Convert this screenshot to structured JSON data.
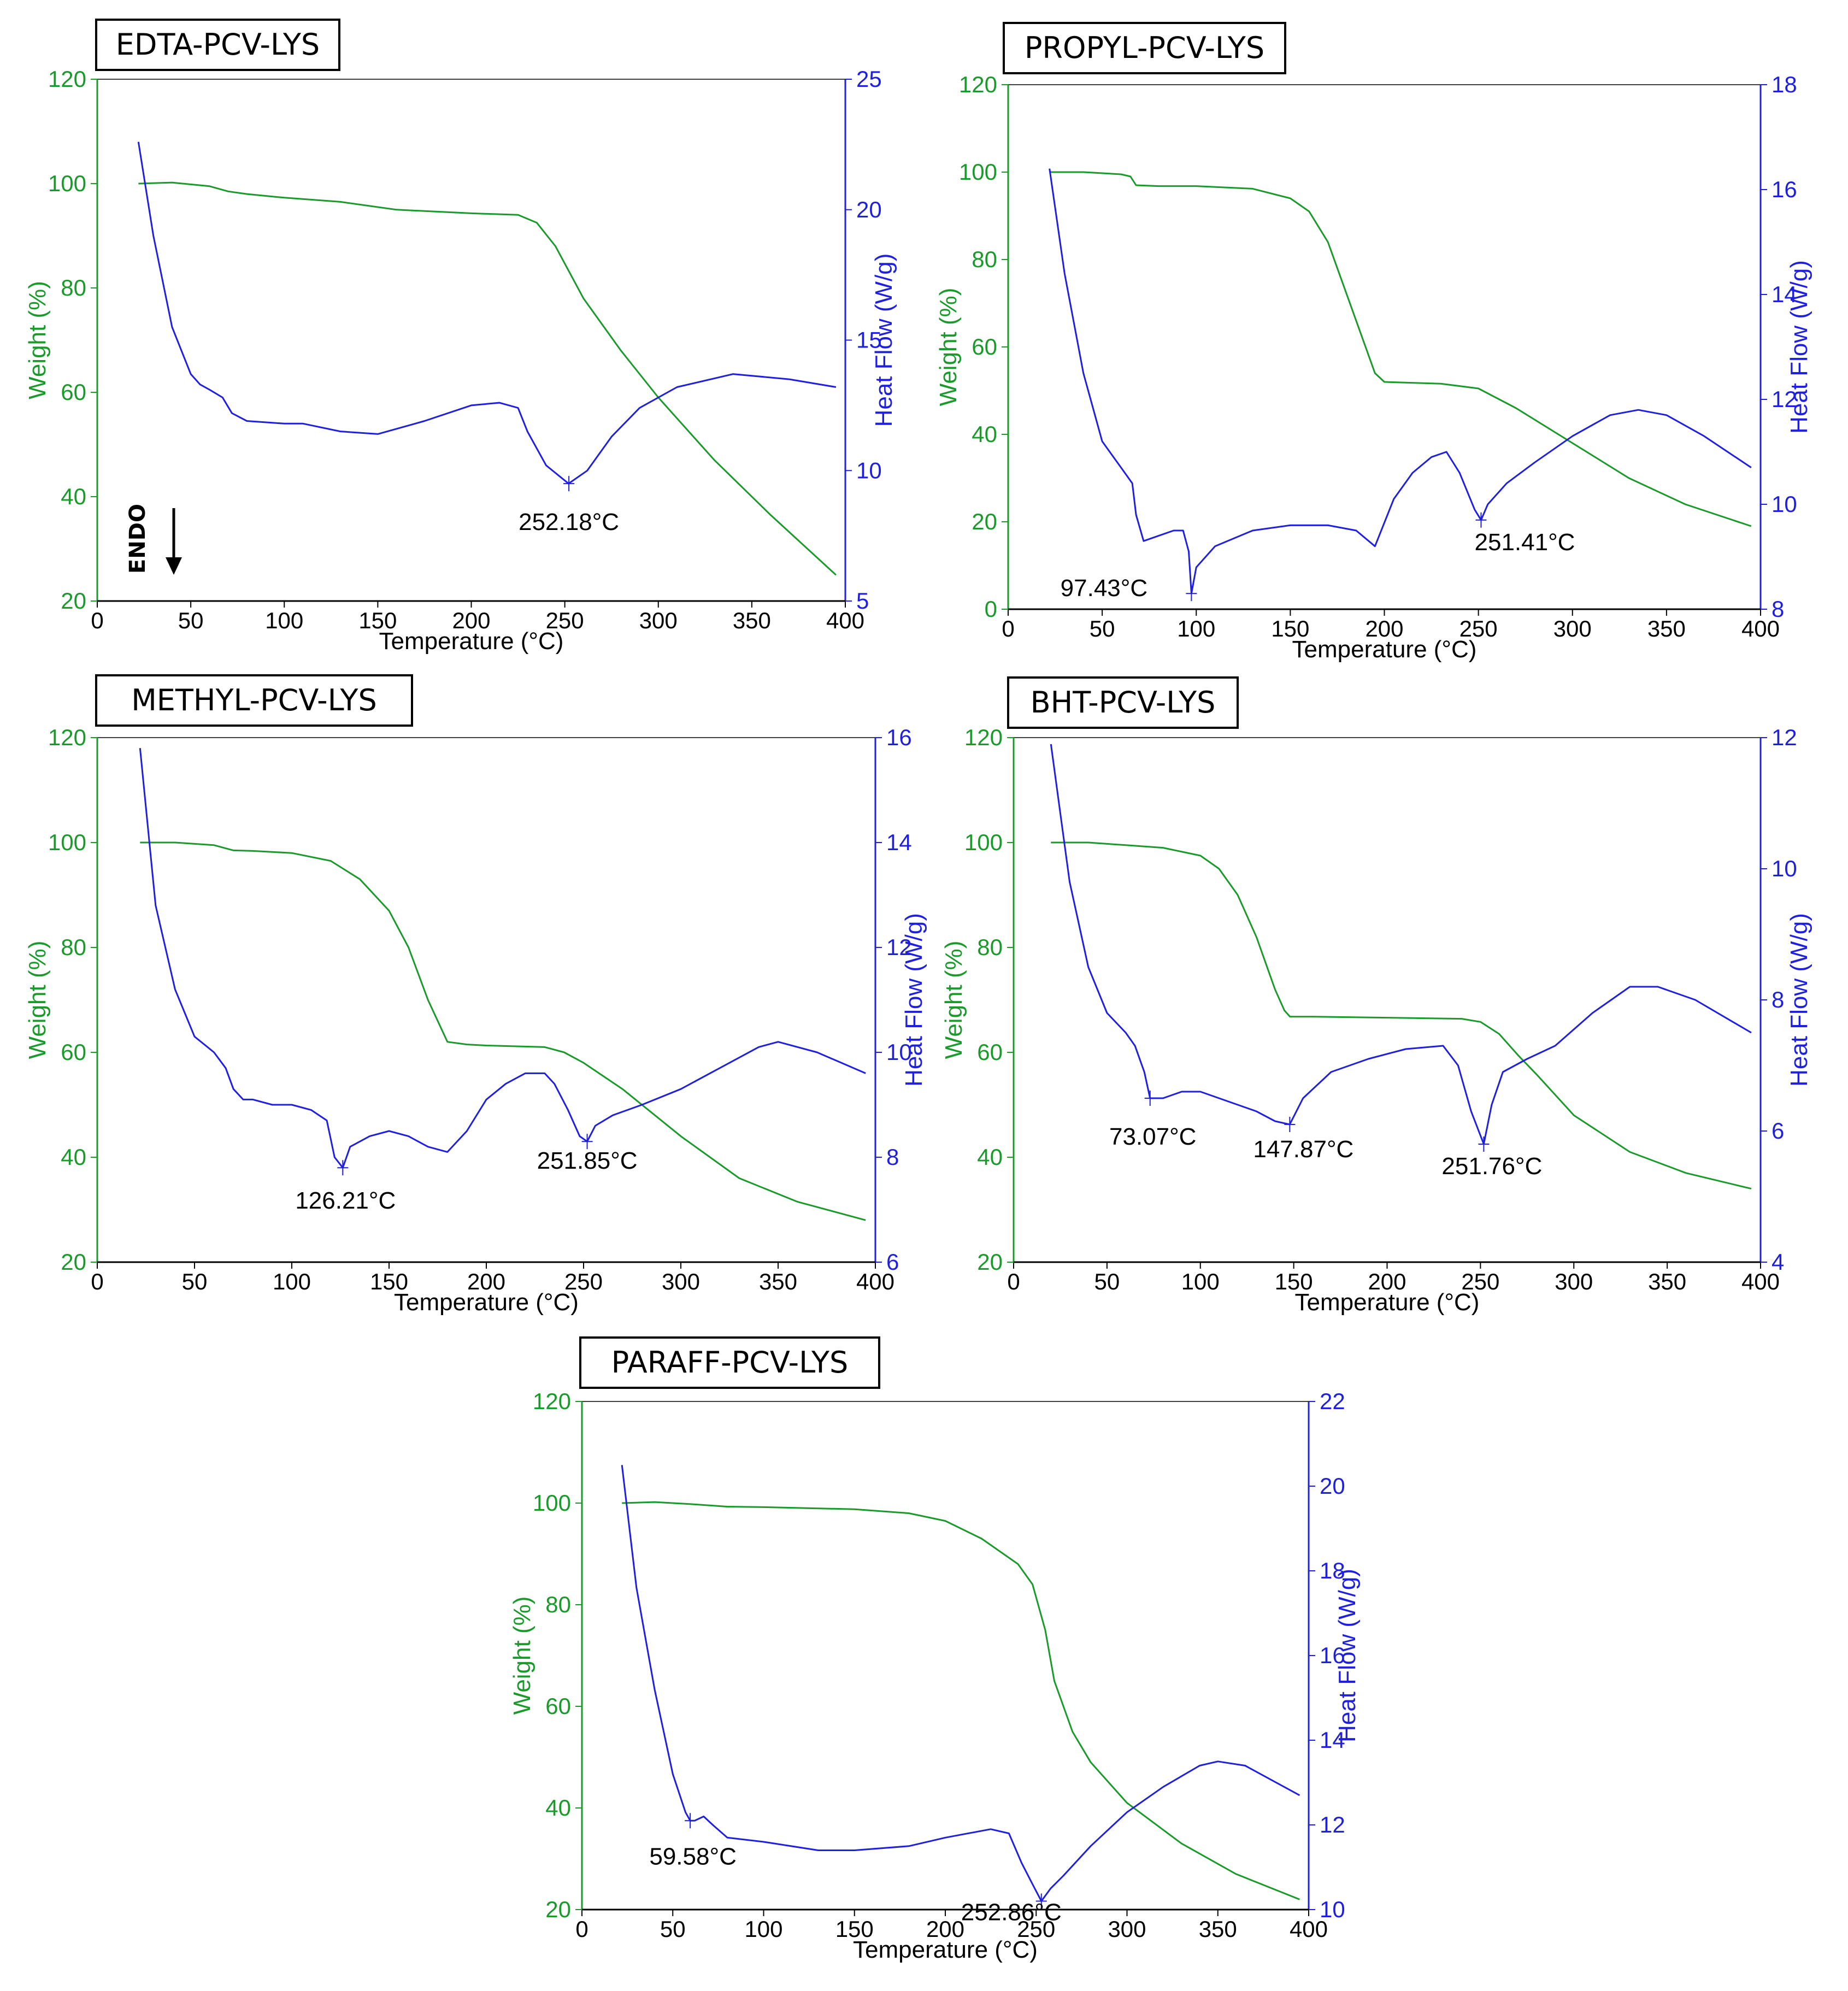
{
  "colors": {
    "weight": "#1a9a2a",
    "heat": "#1f1fe0",
    "frame": "#000000",
    "annotation": "#000000"
  },
  "chart_data": [
    {
      "type": "line",
      "title": "EDTA-PCV-LYS",
      "xlabel": "Temperature (°C)",
      "ylabel_left": "Weight (%)",
      "ylabel_right": "Heat Flow (W/g)",
      "xlim": [
        0,
        400
      ],
      "xticks": [
        "0",
        "50",
        "100",
        "150",
        "200",
        "250",
        "300",
        "350",
        "400"
      ],
      "ylim_left": [
        20,
        120
      ],
      "yticks_left": [
        "20",
        "40",
        "60",
        "80",
        "100",
        "120"
      ],
      "ylim_right": [
        5,
        25
      ],
      "yticks_right": [
        "5",
        "10",
        "15",
        "20",
        "25"
      ],
      "endo_label": "ENDO",
      "series": [
        {
          "name": "Weight (%)",
          "axis": "left",
          "x": [
            22,
            40,
            60,
            70,
            80,
            100,
            130,
            160,
            200,
            225,
            235,
            245,
            260,
            280,
            300,
            330,
            360,
            395
          ],
          "y": [
            100,
            100.2,
            99.5,
            98.5,
            98,
            97.3,
            96.5,
            95,
            94.3,
            94,
            92.5,
            88,
            78,
            68,
            59,
            47,
            36.5,
            25
          ]
        },
        {
          "name": "Heat Flow (W/g)",
          "axis": "right",
          "x": [
            22,
            30,
            40,
            50,
            55,
            60,
            67,
            72,
            80,
            100,
            110,
            130,
            150,
            175,
            200,
            215,
            225,
            230,
            240,
            252,
            262,
            275,
            290,
            310,
            340,
            370,
            395
          ],
          "y": [
            22.6,
            19,
            15.5,
            13.7,
            13.3,
            13.1,
            12.8,
            12.2,
            11.9,
            11.8,
            11.8,
            11.5,
            11.4,
            11.9,
            12.5,
            12.6,
            12.4,
            11.5,
            10.2,
            9.5,
            10,
            11.3,
            12.4,
            13.2,
            13.7,
            13.5,
            13.2
          ]
        }
      ],
      "annotations": [
        {
          "text": "252.18°C",
          "x": 252.18,
          "y": 9.5,
          "axis": "right"
        }
      ]
    },
    {
      "type": "line",
      "title": "PROPYL-PCV-LYS",
      "xlabel": "Temperature (°C)",
      "ylabel_left": "Weight (%)",
      "ylabel_right": "Heat Flow (W/g)",
      "xlim": [
        0,
        400
      ],
      "xticks": [
        "0",
        "50",
        "100",
        "150",
        "200",
        "250",
        "300",
        "350",
        "400"
      ],
      "ylim_left": [
        0,
        120
      ],
      "yticks_left": [
        "0",
        "20",
        "40",
        "60",
        "80",
        "100",
        "120"
      ],
      "ylim_right": [
        8,
        18
      ],
      "yticks_right": [
        "8",
        "10",
        "12",
        "14",
        "16",
        "18"
      ],
      "series": [
        {
          "name": "Weight (%)",
          "axis": "left",
          "x": [
            22,
            40,
            60,
            65,
            68,
            80,
            100,
            130,
            150,
            160,
            170,
            180,
            190,
            195,
            200,
            230,
            250,
            270,
            300,
            330,
            360,
            395
          ],
          "y": [
            100,
            100,
            99.5,
            99,
            97,
            96.8,
            96.8,
            96.2,
            94,
            91,
            84,
            72,
            60,
            54,
            52,
            51.6,
            50.5,
            46,
            38,
            30,
            24,
            19
          ]
        },
        {
          "name": "Heat Flow (W/g)",
          "axis": "right",
          "x": [
            22,
            30,
            40,
            50,
            60,
            66,
            68,
            72,
            80,
            88,
            93,
            96,
            97.43,
            100,
            110,
            130,
            150,
            170,
            185,
            195,
            205,
            215,
            225,
            233,
            240,
            248,
            251.41,
            255,
            265,
            280,
            300,
            320,
            335,
            350,
            370,
            395
          ],
          "y": [
            16.4,
            14.4,
            12.5,
            11.2,
            10.7,
            10.4,
            9.8,
            9.3,
            9.4,
            9.5,
            9.5,
            9.1,
            8.3,
            8.8,
            9.2,
            9.5,
            9.6,
            9.6,
            9.5,
            9.2,
            10.1,
            10.6,
            10.9,
            11,
            10.6,
            9.9,
            9.7,
            10,
            10.4,
            10.8,
            11.3,
            11.7,
            11.8,
            11.7,
            11.3,
            10.7
          ]
        }
      ],
      "annotations": [
        {
          "text": "97.43°C",
          "x": 97.43,
          "y": 8.3,
          "axis": "right"
        },
        {
          "text": "251.41°C",
          "x": 251.41,
          "y": 9.7,
          "axis": "right"
        }
      ]
    },
    {
      "type": "line",
      "title": "METHYL-PCV-LYS",
      "xlabel": "Temperature (°C)",
      "ylabel_left": "Weight (%)",
      "ylabel_right": "Heat Flow (W/g)",
      "xlim": [
        0,
        400
      ],
      "xticks": [
        "0",
        "50",
        "100",
        "150",
        "200",
        "250",
        "300",
        "350",
        "400"
      ],
      "ylim_left": [
        20,
        120
      ],
      "yticks_left": [
        "20",
        "40",
        "60",
        "80",
        "100",
        "120"
      ],
      "ylim_right": [
        6,
        16
      ],
      "yticks_right": [
        "6",
        "8",
        "10",
        "12",
        "14",
        "16"
      ],
      "series": [
        {
          "name": "Weight (%)",
          "axis": "left",
          "x": [
            22,
            40,
            60,
            70,
            80,
            100,
            120,
            135,
            150,
            160,
            170,
            180,
            190,
            200,
            230,
            240,
            250,
            270,
            300,
            330,
            360,
            395
          ],
          "y": [
            100,
            100,
            99.5,
            98.5,
            98.4,
            98,
            96.5,
            93,
            87,
            80,
            70,
            62,
            61.5,
            61.3,
            61,
            60,
            58,
            53,
            44,
            36,
            31.5,
            28
          ]
        },
        {
          "name": "Heat Flow (W/g)",
          "axis": "right",
          "x": [
            22,
            30,
            40,
            50,
            60,
            66,
            70,
            75,
            80,
            90,
            100,
            110,
            118,
            122,
            126.21,
            130,
            140,
            150,
            160,
            170,
            180,
            190,
            200,
            210,
            220,
            230,
            235,
            242,
            248,
            251.85,
            256,
            265,
            280,
            300,
            320,
            340,
            350,
            370,
            395
          ],
          "y": [
            15.8,
            12.8,
            11.2,
            10.3,
            10,
            9.7,
            9.3,
            9.1,
            9.1,
            9,
            9,
            8.9,
            8.7,
            8,
            7.8,
            8.2,
            8.4,
            8.5,
            8.4,
            8.2,
            8.1,
            8.5,
            9.1,
            9.4,
            9.6,
            9.6,
            9.4,
            8.9,
            8.4,
            8.3,
            8.6,
            8.8,
            9.0,
            9.3,
            9.7,
            10.1,
            10.2,
            10.0,
            9.6
          ]
        }
      ],
      "annotations": [
        {
          "text": "126.21°C",
          "x": 126.21,
          "y": 7.8,
          "axis": "right"
        },
        {
          "text": "251.85°C",
          "x": 251.85,
          "y": 8.3,
          "axis": "right"
        }
      ]
    },
    {
      "type": "line",
      "title": "BHT-PCV-LYS",
      "xlabel": "Temperature (°C)",
      "ylabel_left": "Weight (%)",
      "ylabel_right": "Heat Flow (W/g)",
      "xlim": [
        0,
        400
      ],
      "xticks": [
        "0",
        "50",
        "100",
        "150",
        "200",
        "250",
        "300",
        "350",
        "400"
      ],
      "ylim_left": [
        20,
        120
      ],
      "yticks_left": [
        "20",
        "40",
        "60",
        "80",
        "100",
        "120"
      ],
      "ylim_right": [
        4,
        12
      ],
      "yticks_right": [
        "4",
        "6",
        "8",
        "10",
        "12"
      ],
      "series": [
        {
          "name": "Weight (%)",
          "axis": "left",
          "x": [
            20,
            40,
            60,
            80,
            100,
            110,
            120,
            130,
            140,
            145,
            148,
            160,
            200,
            240,
            250,
            260,
            270,
            280,
            300,
            330,
            360,
            395
          ],
          "y": [
            100,
            100,
            99.5,
            99,
            97.5,
            95,
            90,
            82,
            72,
            68,
            66.8,
            66.8,
            66.6,
            66.4,
            65.8,
            63.5,
            59.5,
            55.8,
            48,
            41,
            37,
            34
          ]
        },
        {
          "name": "Heat Flow (W/g)",
          "axis": "right",
          "x": [
            20,
            30,
            40,
            50,
            60,
            65,
            70,
            73.07,
            80,
            90,
            100,
            110,
            120,
            130,
            140,
            147.87,
            155,
            170,
            190,
            210,
            230,
            238,
            245,
            251.76,
            256,
            262,
            275,
            290,
            310,
            330,
            345,
            365,
            395
          ],
          "y": [
            11.9,
            9.8,
            8.5,
            7.8,
            7.5,
            7.3,
            6.9,
            6.5,
            6.5,
            6.6,
            6.6,
            6.5,
            6.4,
            6.3,
            6.15,
            6.1,
            6.5,
            6.9,
            7.1,
            7.25,
            7.3,
            7,
            6.3,
            5.8,
            6.4,
            6.9,
            7.1,
            7.3,
            7.8,
            8.2,
            8.2,
            8.0,
            7.5
          ]
        }
      ],
      "annotations": [
        {
          "text": "73.07°C",
          "x": 73.07,
          "y": 6.5,
          "axis": "right"
        },
        {
          "text": "147.87°C",
          "x": 147.87,
          "y": 6.1,
          "axis": "right"
        },
        {
          "text": "251.76°C",
          "x": 251.76,
          "y": 5.8,
          "axis": "right"
        }
      ]
    },
    {
      "type": "line",
      "title": "PARAFF-PCV-LYS",
      "xlabel": "Temperature (°C)",
      "ylabel_left": "Weight (%)",
      "ylabel_right": "Heat Flow (W/g)",
      "xlim": [
        0,
        400
      ],
      "xticks": [
        "0",
        "50",
        "100",
        "150",
        "200",
        "250",
        "300",
        "350",
        "400"
      ],
      "ylim_left": [
        20,
        120
      ],
      "yticks_left": [
        "20",
        "40",
        "60",
        "80",
        "100",
        "120"
      ],
      "ylim_right": [
        10,
        22
      ],
      "yticks_right": [
        "10",
        "12",
        "14",
        "16",
        "18",
        "20",
        "22"
      ],
      "series": [
        {
          "name": "Weight (%)",
          "axis": "left",
          "x": [
            22,
            40,
            60,
            80,
            100,
            150,
            180,
            200,
            220,
            240,
            248,
            255,
            260,
            270,
            280,
            300,
            330,
            360,
            395
          ],
          "y": [
            100,
            100.2,
            99.8,
            99.3,
            99.2,
            98.8,
            98,
            96.5,
            93,
            88,
            84,
            75,
            65,
            55,
            49,
            41,
            33,
            27,
            22
          ]
        },
        {
          "name": "Heat Flow (W/g)",
          "axis": "right",
          "x": [
            22,
            30,
            40,
            50,
            57,
            59.58,
            62,
            67,
            72,
            80,
            100,
            130,
            150,
            180,
            200,
            225,
            235,
            242,
            248,
            252.86,
            258,
            265,
            280,
            300,
            320,
            340,
            350,
            365,
            395
          ],
          "y": [
            20.5,
            17.6,
            15.2,
            13.2,
            12.3,
            12.1,
            12.1,
            12.2,
            12.0,
            11.7,
            11.6,
            11.4,
            11.4,
            11.5,
            11.7,
            11.9,
            11.8,
            11.1,
            10.6,
            10.2,
            10.5,
            10.8,
            11.5,
            12.3,
            12.9,
            13.4,
            13.5,
            13.4,
            12.7
          ]
        }
      ],
      "annotations": [
        {
          "text": "59.58°C",
          "x": 59.58,
          "y": 12.1,
          "axis": "right"
        },
        {
          "text": "252.86°C",
          "x": 252.86,
          "y": 10.2,
          "axis": "right"
        }
      ]
    }
  ]
}
